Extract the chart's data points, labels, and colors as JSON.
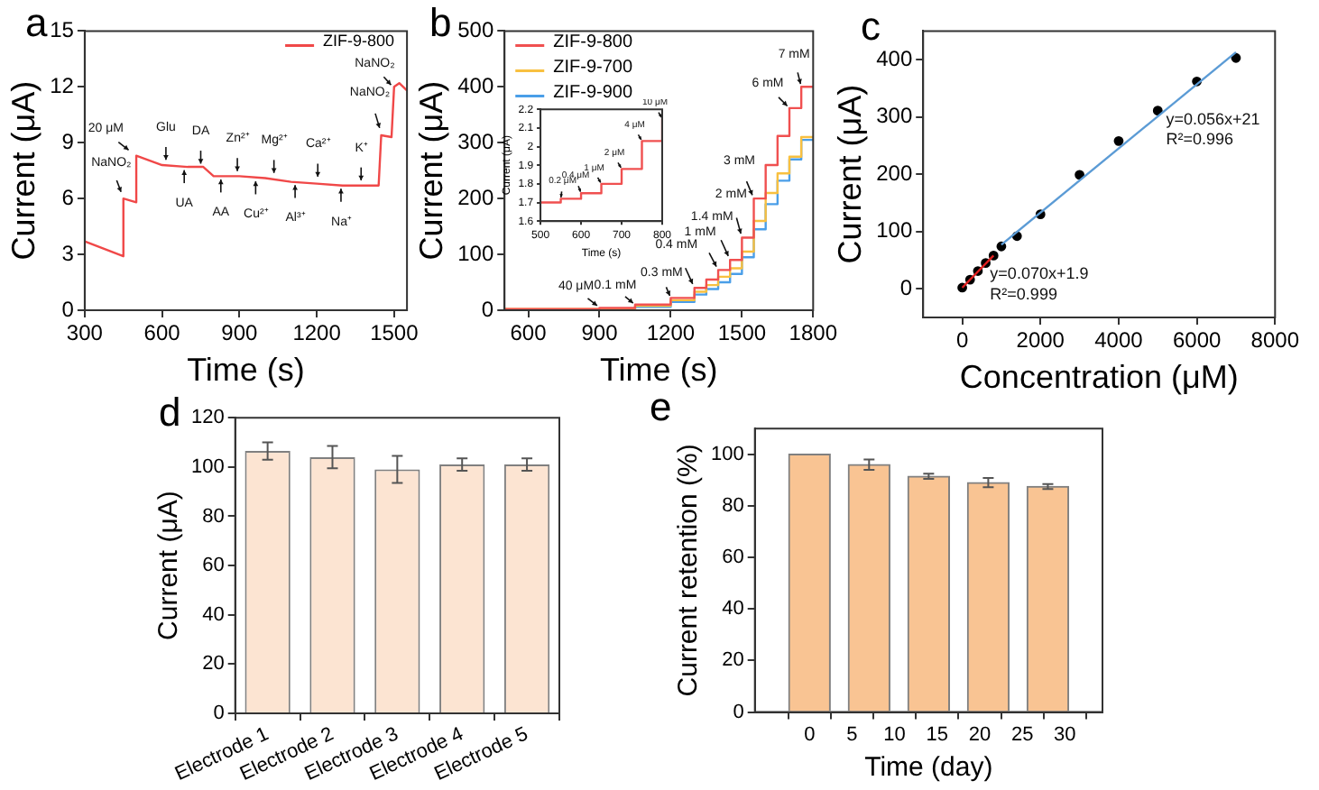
{
  "chart_data": [
    {
      "type": "line",
      "title": "a",
      "xlabel": "Time (s)",
      "ylabel": "Current (μA)",
      "xlim": [
        300,
        1550
      ],
      "ylim": [
        0,
        15
      ],
      "xticks": [
        300,
        600,
        900,
        1200,
        1500
      ],
      "yticks": [
        0,
        3,
        6,
        9,
        12,
        15
      ],
      "legend": "top right",
      "series": [
        {
          "name": "ZIF-9-800",
          "color": "#f04848",
          "x": [
            300,
            450,
            450,
            500,
            500,
            600,
            700,
            760,
            800,
            900,
            1000,
            1100,
            1200,
            1300,
            1440,
            1450,
            1490,
            1500,
            1520,
            1550
          ],
          "values": [
            3.7,
            2.9,
            6,
            5.8,
            8.3,
            7.8,
            7.7,
            7.7,
            7.2,
            7.2,
            7.1,
            6.9,
            6.8,
            6.7,
            6.7,
            9.4,
            9.3,
            12,
            12.2,
            11.8
          ]
        }
      ],
      "annotations": [
        {
          "text": "NaNO₂",
          "x": 445,
          "y": 6.2
        },
        {
          "text": "20 μM",
          "x": 480,
          "y": 8.5
        },
        {
          "text": "Glu",
          "x": 615,
          "y": 7.9
        },
        {
          "text": "UA",
          "x": 686,
          "y": 7.7
        },
        {
          "text": "DA",
          "x": 750,
          "y": 7.7
        },
        {
          "text": "AA",
          "x": 828,
          "y": 7.2
        },
        {
          "text": "Zn²⁺",
          "x": 892,
          "y": 7.3
        },
        {
          "text": "Cu²⁺",
          "x": 963,
          "y": 7.1
        },
        {
          "text": "Mg²⁺",
          "x": 1034,
          "y": 7.2
        },
        {
          "text": "Al³⁺",
          "x": 1116,
          "y": 6.9
        },
        {
          "text": "Ca²⁺",
          "x": 1204,
          "y": 7.0
        },
        {
          "text": "Na⁺",
          "x": 1294,
          "y": 6.7
        },
        {
          "text": "K⁺",
          "x": 1372,
          "y": 6.8
        },
        {
          "text": "NaNO₂",
          "x": 1448,
          "y": 9.6
        },
        {
          "text": "NaNO₂",
          "x": 1495,
          "y": 12.0
        }
      ]
    },
    {
      "type": "step",
      "title": "b",
      "xlabel": "Time (s)",
      "ylabel": "Current (μA)",
      "xlim": [
        500,
        1800
      ],
      "ylim": [
        0,
        500
      ],
      "xticks": [
        600,
        900,
        1200,
        1500,
        1800
      ],
      "yticks": [
        0,
        100,
        200,
        300,
        400,
        500
      ],
      "legend": "top left",
      "x": [
        500,
        900,
        1050,
        1200,
        1300,
        1350,
        1400,
        1450,
        1500,
        1550,
        1600,
        1650,
        1700,
        1750,
        1800
      ],
      "series": [
        {
          "name": "ZIF-9-800",
          "color": "#f05050",
          "values": [
            2,
            4,
            10,
            22,
            40,
            55,
            72,
            90,
            130,
            200,
            260,
            312,
            362,
            400,
            400
          ]
        },
        {
          "name": "ZIF-9-700",
          "color": "#f8c040",
          "values": [
            2,
            3,
            8,
            18,
            33,
            45,
            60,
            75,
            105,
            160,
            210,
            245,
            275,
            310,
            310
          ]
        },
        {
          "name": "ZIF-9-900",
          "color": "#4a9ee8",
          "values": [
            1,
            2,
            6,
            15,
            28,
            38,
            50,
            65,
            95,
            145,
            190,
            232,
            270,
            305,
            305
          ]
        }
      ],
      "annotations": [
        {
          "text": "40 μM",
          "x": 900,
          "y": 5
        },
        {
          "text": "0.1 mM",
          "x": 1050,
          "y": 10
        },
        {
          "text": "0.3 mM",
          "x": 1200,
          "y": 22
        },
        {
          "text": "0.4 mM",
          "x": 1300,
          "y": 40
        },
        {
          "text": "1 mM",
          "x": 1400,
          "y": 72
        },
        {
          "text": "1.4 mM",
          "x": 1450,
          "y": 90
        },
        {
          "text": "2 mM",
          "x": 1500,
          "y": 130
        },
        {
          "text": "3 mM",
          "x": 1550,
          "y": 200
        },
        {
          "text": "6 mM",
          "x": 1700,
          "y": 362
        },
        {
          "text": "7 mM",
          "x": 1750,
          "y": 400
        }
      ]
    },
    {
      "type": "step",
      "xlabel": "Time (s)",
      "ylabel": "Current (μA)",
      "xlim": [
        500,
        800
      ],
      "ylim": [
        1.6,
        2.2
      ],
      "xticks": [
        500,
        600,
        700,
        800
      ],
      "yticks": [
        1.6,
        1.7,
        1.8,
        1.9,
        2.0,
        2.1,
        2.2
      ],
      "series": [
        {
          "color": "#f05050",
          "x": [
            500,
            550,
            600,
            650,
            700,
            750,
            800
          ],
          "values": [
            1.7,
            1.72,
            1.75,
            1.8,
            1.88,
            2.03,
            2.15
          ]
        }
      ],
      "annotations": [
        {
          "text": "0.2 μM",
          "x": 550,
          "y": 1.72
        },
        {
          "text": "0.4 μM",
          "x": 600,
          "y": 1.75
        },
        {
          "text": "1 μM",
          "x": 650,
          "y": 1.8
        },
        {
          "text": "2 μM",
          "x": 700,
          "y": 1.88
        },
        {
          "text": "4 μM",
          "x": 750,
          "y": 2.03
        },
        {
          "text": "10 μM",
          "x": 800,
          "y": 2.15
        }
      ]
    },
    {
      "type": "scatter",
      "title": "c",
      "xlabel": "Concentration (μM)",
      "ylabel": "Current (μA)",
      "xlim": [
        -1000,
        8000
      ],
      "ylim": [
        -50,
        450
      ],
      "xticks": [
        0,
        2000,
        4000,
        6000,
        8000
      ],
      "yticks": [
        0,
        100,
        200,
        300,
        400
      ],
      "series": [
        {
          "color": "#000000",
          "marker": "circle",
          "x": [
            0,
            200,
            400,
            600,
            800,
            1000,
            1400,
            2000,
            3000,
            4000,
            5000,
            6000,
            7000
          ],
          "values": [
            2,
            16,
            31,
            45,
            58,
            74,
            92,
            130,
            199,
            258,
            311,
            362,
            403
          ]
        },
        {
          "type": "line",
          "color": "#e02020",
          "x": [
            0,
            800
          ],
          "values": [
            2,
            58
          ]
        },
        {
          "type": "line",
          "color": "#5b9bd5",
          "x": [
            1000,
            7000
          ],
          "values": [
            77,
            413
          ]
        }
      ],
      "annotations": [
        "y=0.056x+21",
        "R²=0.996",
        "y=0.070x+1.9",
        "R²=0.999"
      ]
    },
    {
      "type": "bar",
      "title": "d",
      "ylabel": "Current (μA)",
      "categories": [
        "Electrode 1",
        "Electrode 2",
        "Electrode 3",
        "Electrode 4",
        "Electrode 5"
      ],
      "values": [
        106.5,
        104,
        99,
        101,
        101
      ],
      "errors": [
        3.5,
        4.5,
        5.5,
        2.5,
        2.5
      ],
      "color": "#fce4d2",
      "ylim": [
        0,
        120
      ],
      "yticks": [
        0,
        20,
        40,
        60,
        80,
        100,
        120
      ]
    },
    {
      "type": "bar",
      "title": "e",
      "xlabel": "Time (day)",
      "ylabel": "Current retention (%)",
      "x": [
        0,
        7,
        14,
        21,
        28
      ],
      "values": [
        100,
        96,
        91.5,
        89,
        87.5
      ],
      "errors": [
        null,
        2,
        1,
        1.8,
        1
      ],
      "color": "#f9c493",
      "xlim": [
        -3.5,
        31.5
      ],
      "ylim": [
        0,
        110
      ],
      "xticks": [
        0,
        5,
        10,
        15,
        20,
        25,
        30
      ],
      "yticks": [
        0,
        20,
        40,
        60,
        80,
        100
      ]
    }
  ]
}
